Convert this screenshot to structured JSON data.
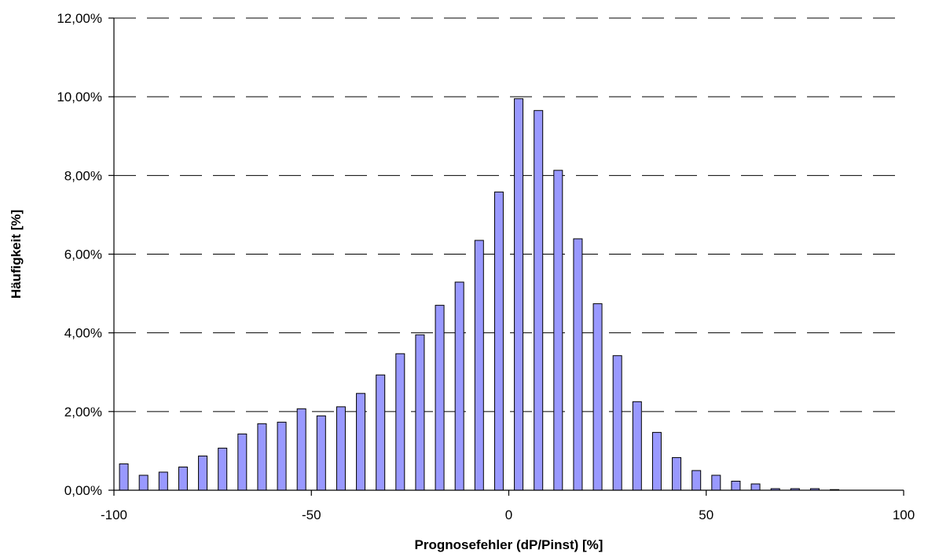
{
  "chart_data": {
    "type": "bar",
    "xlabel": "Prognosefehler (dP/Pinst) [%]",
    "ylabel": "Häufigkeit [%]",
    "xlim": [
      -100,
      100
    ],
    "ylim": [
      0,
      12
    ],
    "y_ticks": [
      {
        "value": 0,
        "label": "0,00%"
      },
      {
        "value": 2,
        "label": "2,00%"
      },
      {
        "value": 4,
        "label": "4,00%"
      },
      {
        "value": 6,
        "label": "6,00%"
      },
      {
        "value": 8,
        "label": "8,00%"
      },
      {
        "value": 10,
        "label": "10,00%"
      },
      {
        "value": 12,
        "label": "12,00%"
      }
    ],
    "x_ticks": [
      {
        "value": -100,
        "label": "-100"
      },
      {
        "value": -50,
        "label": "-50"
      },
      {
        "value": 0,
        "label": "0"
      },
      {
        "value": 50,
        "label": "50"
      },
      {
        "value": 100,
        "label": "100"
      }
    ],
    "grid": true,
    "bar_color": "#9999FF",
    "x": [
      -97.5,
      -92.5,
      -87.5,
      -82.5,
      -77.5,
      -72.5,
      -67.5,
      -62.5,
      -57.5,
      -52.5,
      -47.5,
      -42.5,
      -37.5,
      -32.5,
      -27.5,
      -22.5,
      -17.5,
      -12.5,
      -7.5,
      -2.5,
      2.5,
      7.5,
      12.5,
      17.5,
      22.5,
      27.5,
      32.5,
      37.5,
      42.5,
      47.5,
      52.5,
      57.5,
      62.5,
      67.5,
      72.5,
      77.5,
      82.5
    ],
    "values": [
      0.67,
      0.38,
      0.46,
      0.59,
      0.87,
      1.07,
      1.43,
      1.69,
      1.73,
      2.07,
      1.89,
      2.12,
      2.46,
      2.93,
      3.47,
      3.95,
      4.7,
      5.29,
      6.35,
      7.58,
      9.95,
      9.65,
      8.13,
      6.39,
      4.74,
      3.42,
      2.25,
      1.47,
      0.83,
      0.5,
      0.38,
      0.23,
      0.16,
      0.04,
      0.04,
      0.04,
      0.01
    ]
  }
}
